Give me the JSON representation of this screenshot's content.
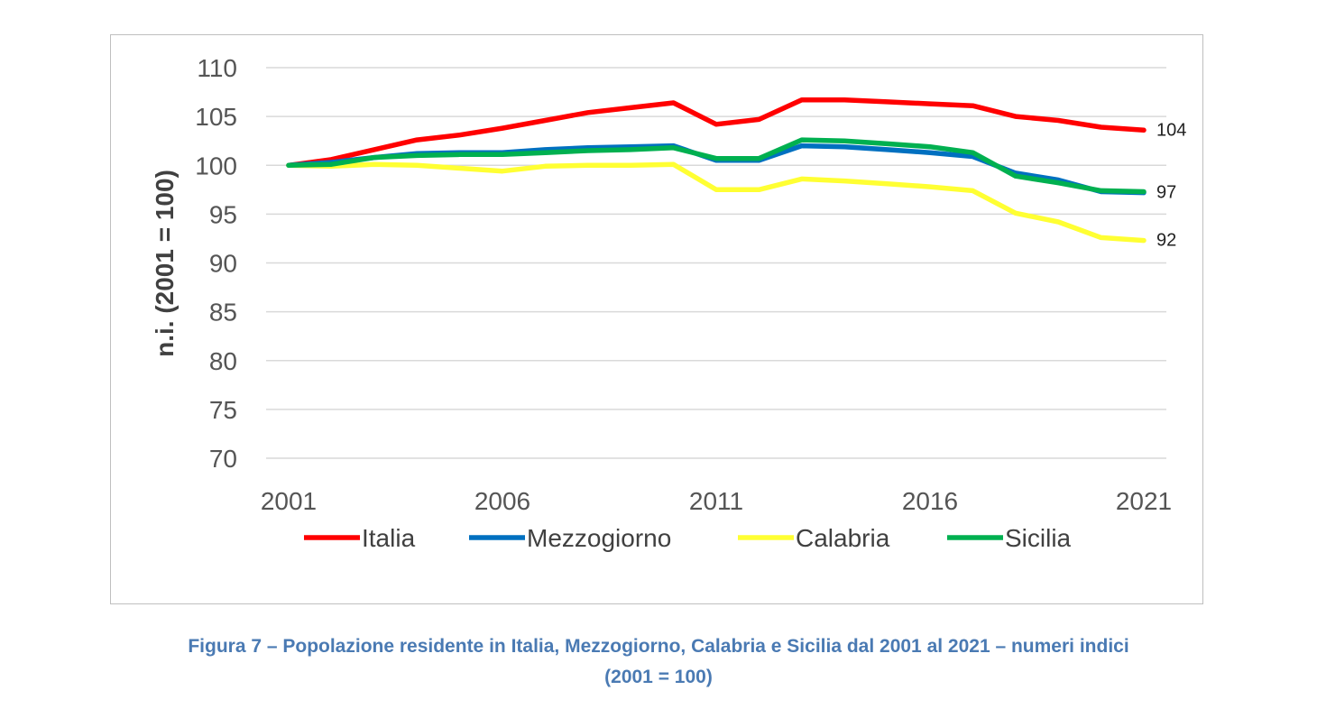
{
  "chart_data": {
    "type": "line",
    "title": "",
    "xlabel": "",
    "ylabel": "n.i. (2001 = 100)",
    "ylim": [
      70,
      110
    ],
    "yticks": [
      70,
      75,
      80,
      85,
      90,
      95,
      100,
      105,
      110
    ],
    "xlim": [
      2001,
      2021
    ],
    "xticks": [
      2001,
      2006,
      2011,
      2016,
      2021
    ],
    "grid": "horizontal",
    "legend": "bottom",
    "x": [
      2001,
      2002,
      2003,
      2004,
      2005,
      2006,
      2007,
      2008,
      2009,
      2010,
      2011,
      2012,
      2013,
      2014,
      2015,
      2016,
      2017,
      2018,
      2019,
      2020,
      2021
    ],
    "series": [
      {
        "name": "Italia",
        "color": "#ff0000",
        "values": [
          100.0,
          100.6,
          101.6,
          102.6,
          103.1,
          103.8,
          104.6,
          105.4,
          105.9,
          106.4,
          104.2,
          104.7,
          106.7,
          106.7,
          106.5,
          106.3,
          106.1,
          105.0,
          104.6,
          103.9,
          103.6
        ],
        "end_label": "104"
      },
      {
        "name": "Mezzogiorno",
        "color": "#0070c0",
        "values": [
          100.0,
          100.3,
          100.8,
          101.2,
          101.3,
          101.3,
          101.6,
          101.8,
          101.9,
          102.0,
          100.5,
          100.5,
          102.0,
          101.9,
          101.6,
          101.3,
          100.9,
          99.2,
          98.5,
          97.3,
          97.2
        ],
        "end_label": "97"
      },
      {
        "name": "Calabria",
        "color": "#ffff33",
        "values": [
          100.0,
          99.9,
          100.1,
          100.0,
          99.7,
          99.4,
          99.9,
          100.0,
          100.0,
          100.1,
          97.5,
          97.5,
          98.6,
          98.4,
          98.1,
          97.8,
          97.4,
          95.1,
          94.2,
          92.6,
          92.3
        ],
        "end_label": "92"
      },
      {
        "name": "Sicilia",
        "color": "#00b050",
        "values": [
          100.0,
          100.1,
          100.8,
          101.0,
          101.1,
          101.1,
          101.3,
          101.5,
          101.6,
          101.8,
          100.7,
          100.7,
          102.6,
          102.5,
          102.2,
          101.9,
          101.3,
          98.9,
          98.2,
          97.4,
          97.3
        ],
        "end_label": null
      }
    ]
  },
  "caption": {
    "line1": "Figura 7 – Popolazione residente in Italia, Mezzogiorno, Calabria e Sicilia dal 2001 al 2021 – numeri indici",
    "line2": "(2001 = 100)"
  }
}
